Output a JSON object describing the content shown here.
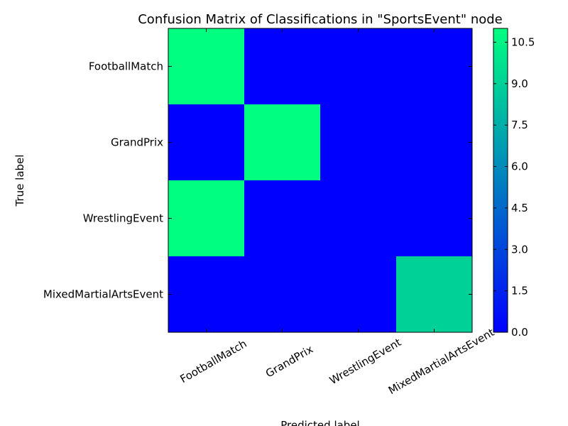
{
  "chart_data": {
    "type": "heatmap",
    "title": "Confusion Matrix of Classifications in \"SportsEvent\" node",
    "xlabel": "Predicted label",
    "ylabel": "True label",
    "x_categories": [
      "FootballMatch",
      "GrandPrix",
      "WrestlingEvent",
      "MixedMartialArtsEvent"
    ],
    "y_categories": [
      "FootballMatch",
      "GrandPrix",
      "WrestlingEvent",
      "MixedMartialArtsEvent"
    ],
    "values": [
      [
        11,
        0,
        0,
        0
      ],
      [
        0,
        11,
        0,
        0
      ],
      [
        11,
        0,
        0,
        0
      ],
      [
        0,
        0,
        0,
        9
      ]
    ],
    "colorbar": {
      "range": [
        0,
        11
      ],
      "ticks": [
        "0.0",
        "1.5",
        "3.0",
        "4.5",
        "6.0",
        "7.5",
        "9.0",
        "10.5"
      ],
      "colormap": "winter",
      "low_color": "#0000ff",
      "high_color": "#00ff80"
    }
  }
}
